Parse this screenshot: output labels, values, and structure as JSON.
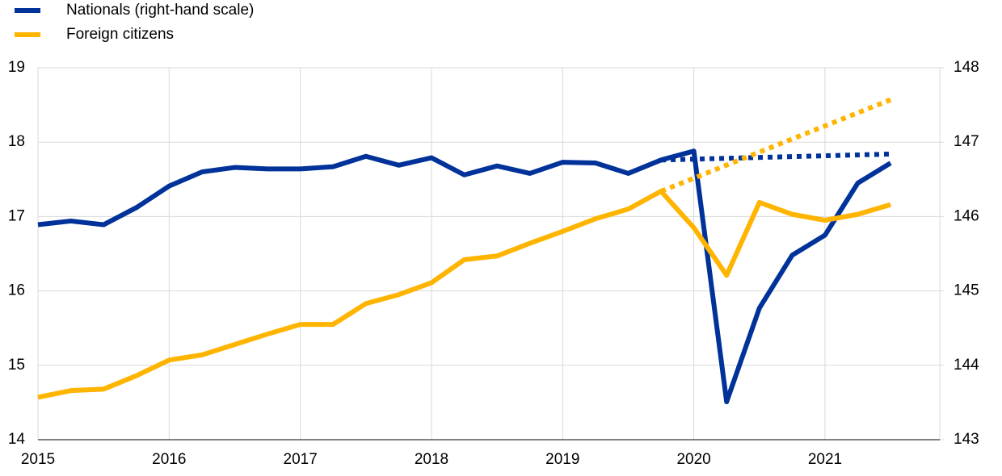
{
  "chart_data": {
    "type": "line",
    "x": [
      2015,
      2015.25,
      2015.5,
      2015.75,
      2016,
      2016.25,
      2016.5,
      2016.75,
      2017,
      2017.25,
      2017.5,
      2017.75,
      2018,
      2018.25,
      2018.5,
      2018.75,
      2019,
      2019.25,
      2019.5,
      2019.75,
      2020,
      2020.25,
      2020.5,
      2020.75,
      2021,
      2021.25,
      2021.5
    ],
    "series": [
      {
        "name": "Nationals (right-hand scale)",
        "color": "#003299",
        "axis": "y2",
        "values": [
          145.89,
          145.94,
          145.89,
          146.12,
          146.41,
          146.6,
          146.66,
          146.64,
          146.64,
          146.67,
          146.81,
          146.69,
          146.79,
          146.56,
          146.68,
          146.58,
          146.73,
          146.72,
          146.58,
          146.76,
          146.88,
          143.51,
          144.77,
          145.48,
          145.75,
          146.45,
          146.72
        ]
      },
      {
        "name": "Foreign citizens",
        "color": "#ffb400",
        "values": [
          14.57,
          14.66,
          14.68,
          14.86,
          15.07,
          15.14,
          15.28,
          15.42,
          15.55,
          15.55,
          15.83,
          15.95,
          16.11,
          16.42,
          16.47,
          16.64,
          16.8,
          16.97,
          17.1,
          17.34,
          16.85,
          16.21,
          17.19,
          17.03,
          16.95,
          17.03,
          17.16
        ]
      },
      {
        "color": "#003299",
        "axis": "y2",
        "style": "dotted",
        "x": [
          2019.75,
          2021.5
        ],
        "values": [
          146.76,
          146.84
        ]
      },
      {
        "color": "#ffb400",
        "style": "dotted",
        "x": [
          2019.75,
          2021.5
        ],
        "values": [
          17.34,
          18.57
        ]
      }
    ],
    "xlim": [
      2015,
      2021.875
    ],
    "xticks": [
      2015,
      2016,
      2017,
      2018,
      2019,
      2020,
      2021
    ],
    "ylim": [
      14,
      19
    ],
    "yticks": [
      14,
      15,
      16,
      17,
      18,
      19
    ],
    "y2lim": [
      143,
      148
    ],
    "y2ticks": [
      143,
      144,
      145,
      146,
      147,
      148
    ],
    "grid": true
  }
}
